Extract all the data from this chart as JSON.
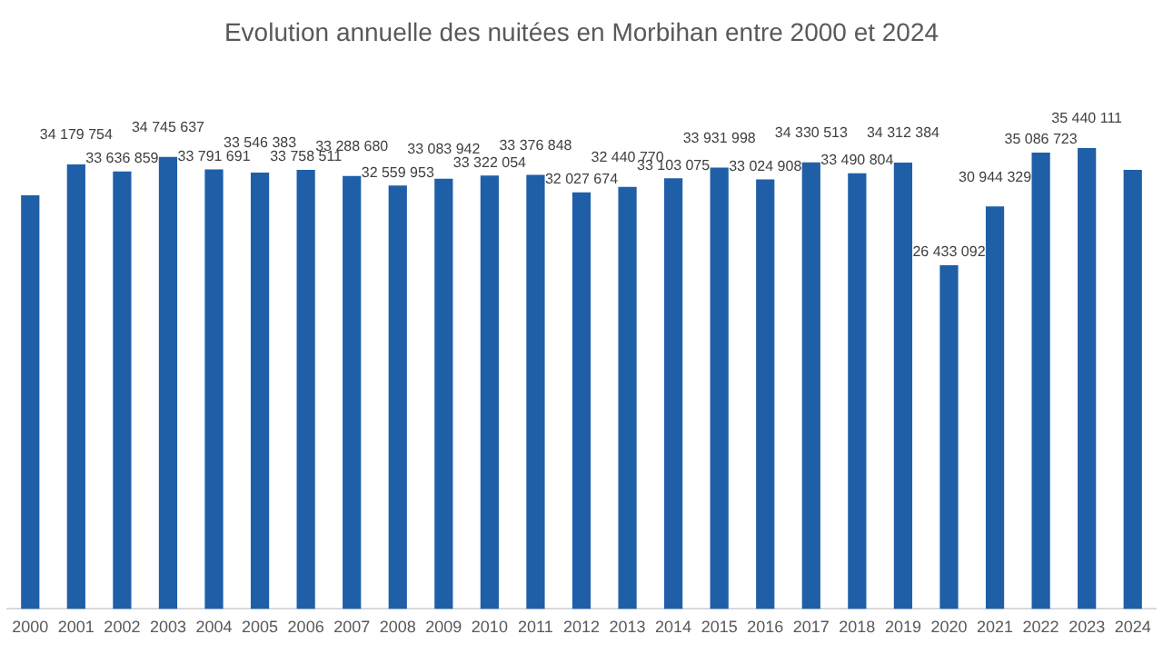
{
  "chart_data": {
    "type": "bar",
    "title": "Evolution annuelle des nuitées en Morbihan entre 2000 et 2024",
    "categories": [
      "2000",
      "2001",
      "2002",
      "2003",
      "2004",
      "2005",
      "2006",
      "2007",
      "2008",
      "2009",
      "2010",
      "2011",
      "2012",
      "2013",
      "2014",
      "2015",
      "2016",
      "2017",
      "2018",
      "2019",
      "2020",
      "2021",
      "2022",
      "2023",
      "2024"
    ],
    "values": [
      31800000,
      34179754,
      33636859,
      34745637,
      33791691,
      33546383,
      33758511,
      33288680,
      32559953,
      33083942,
      33322054,
      33376848,
      32027674,
      32440770,
      33103075,
      33931998,
      33024908,
      34330513,
      33490804,
      34312384,
      26433092,
      30944329,
      35086723,
      35440111,
      33750000
    ],
    "value_labels": [
      null,
      "34 179 754",
      "33 636 859",
      "34 745 637",
      "33 791 691",
      "33 546 383",
      "33 758 511",
      "33 288 680",
      "32 559 953",
      "33 083 942",
      "33 322 054",
      "33 376 848",
      "32 027 674",
      "32 440 770",
      "33 103 075",
      "33 931 998",
      "33 024 908",
      "34 330 513",
      "33 490 804",
      "34 312 384",
      "26 433 092",
      "30 944 329",
      "35 086 723",
      "35 440 111",
      null
    ],
    "color": "#1f5fa8",
    "grid": false,
    "legend": false
  }
}
